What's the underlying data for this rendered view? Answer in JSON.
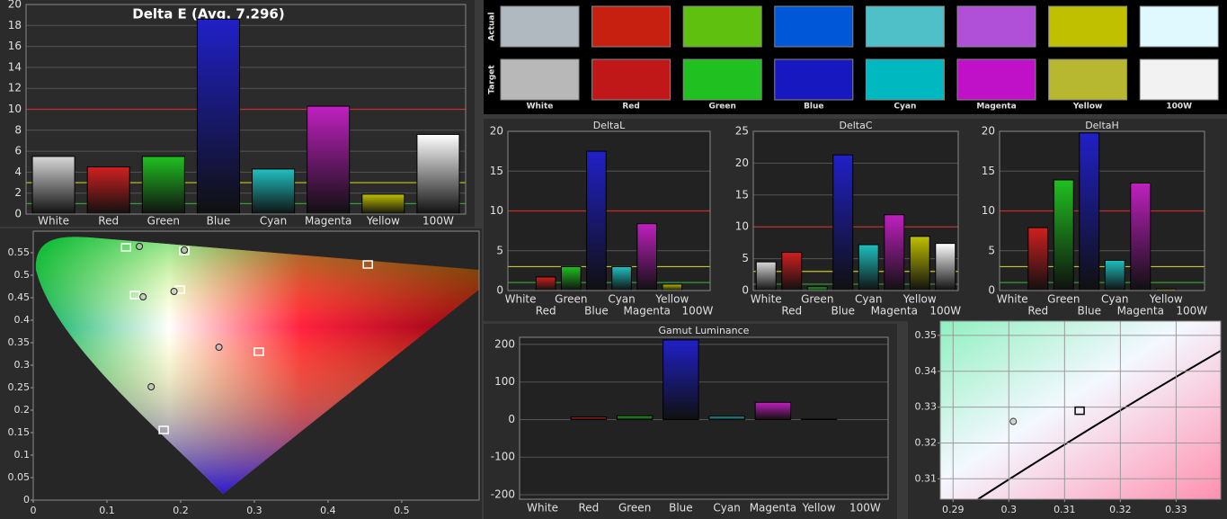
{
  "chart_data": [
    {
      "type": "bar",
      "title": "Delta E (Avg. 7.296)",
      "categories": [
        "White",
        "Red",
        "Green",
        "Blue",
        "Cyan",
        "Magenta",
        "Yellow",
        "100W"
      ],
      "values": [
        5.5,
        4.5,
        5.5,
        18.6,
        4.3,
        10.3,
        1.9,
        7.6
      ],
      "colors": [
        "#d8d8d8",
        "#d02020",
        "#20c020",
        "#2020c8",
        "#20c0c0",
        "#c020c0",
        "#c0c000",
        "#ffffff"
      ],
      "ylim": [
        0,
        20
      ],
      "yticks": [
        0,
        2,
        4,
        6,
        8,
        10,
        12,
        14,
        16,
        18,
        20
      ],
      "grid": true,
      "reference_lines": [
        {
          "value": 10,
          "color": "#c03030"
        },
        {
          "value": 3,
          "color": "#c8c820"
        },
        {
          "value": 1,
          "color": "#30a030"
        }
      ]
    },
    {
      "type": "swatch",
      "categories": [
        "White",
        "Red",
        "Green",
        "Blue",
        "Cyan",
        "Magenta",
        "Yellow",
        "100W"
      ],
      "series": [
        {
          "name": "Actual",
          "colors": [
            "#b0b8c0",
            "#c82010",
            "#60c010",
            "#0058d8",
            "#50c0c8",
            "#b050d8",
            "#c0c000",
            "#e0f8ff"
          ]
        },
        {
          "name": "Target",
          "colors": [
            "#b8b8b8",
            "#c01818",
            "#20c020",
            "#1818c0",
            "#00b8c0",
            "#c010c8",
            "#b8b830",
            "#f2f2f2"
          ]
        }
      ]
    },
    {
      "type": "bar",
      "title": "DeltaL",
      "categories": [
        "White",
        "Red",
        "Green",
        "Blue",
        "Cyan",
        "Magenta",
        "Yellow",
        "100W"
      ],
      "values": [
        0,
        1.7,
        3,
        17.5,
        3,
        8.4,
        0.8,
        0
      ],
      "colors": [
        "#d8d8d8",
        "#d02020",
        "#20c020",
        "#2020c8",
        "#20c0c0",
        "#c020c0",
        "#c0c000",
        "#ffffff"
      ],
      "ylim": [
        0,
        20
      ],
      "yticks": [
        0,
        5,
        10,
        15,
        20
      ],
      "grid": true,
      "reference_lines": [
        {
          "value": 10,
          "color": "#c03030"
        },
        {
          "value": 3,
          "color": "#c8c820"
        },
        {
          "value": 1,
          "color": "#30a030"
        }
      ]
    },
    {
      "type": "bar",
      "title": "DeltaC",
      "categories": [
        "White",
        "Red",
        "Green",
        "Blue",
        "Cyan",
        "Magenta",
        "Yellow",
        "100W"
      ],
      "values": [
        4.5,
        6,
        0.6,
        21.3,
        7.2,
        11.9,
        8.5,
        7.4
      ],
      "colors": [
        "#d8d8d8",
        "#d02020",
        "#20c020",
        "#2020c8",
        "#20c0c0",
        "#c020c0",
        "#c0c000",
        "#ffffff"
      ],
      "ylim": [
        0,
        25
      ],
      "yticks": [
        0,
        5,
        10,
        15,
        20,
        25
      ],
      "grid": true,
      "reference_lines": [
        {
          "value": 10,
          "color": "#c03030"
        },
        {
          "value": 3,
          "color": "#c8c820"
        },
        {
          "value": 1,
          "color": "#30a030"
        }
      ]
    },
    {
      "type": "bar",
      "title": "DeltaH",
      "categories": [
        "White",
        "Red",
        "Green",
        "Blue",
        "Cyan",
        "Magenta",
        "Yellow",
        "100W"
      ],
      "values": [
        0,
        7.9,
        13.9,
        19.8,
        3.8,
        13.5,
        0.2,
        0
      ],
      "colors": [
        "#d8d8d8",
        "#d02020",
        "#20c020",
        "#2020c8",
        "#20c0c0",
        "#c020c0",
        "#c0c000",
        "#ffffff"
      ],
      "ylim": [
        0,
        20
      ],
      "yticks": [
        0,
        5,
        10,
        15,
        20
      ],
      "grid": true,
      "reference_lines": [
        {
          "value": 10,
          "color": "#c03030"
        },
        {
          "value": 3,
          "color": "#c8c820"
        },
        {
          "value": 1,
          "color": "#30a030"
        }
      ]
    },
    {
      "type": "bar",
      "title": "Gamut Luminance",
      "categories": [
        "White",
        "Red",
        "Green",
        "Blue",
        "Cyan",
        "Magenta",
        "Yellow",
        "100W"
      ],
      "values": [
        0,
        7,
        10,
        212,
        9,
        46,
        1,
        0
      ],
      "colors": [
        "#d8d8d8",
        "#d02020",
        "#20c020",
        "#2020c8",
        "#20c0c0",
        "#c020c0",
        "#c0c000",
        "#ffffff"
      ],
      "ylim": [
        -212,
        219
      ],
      "yticks": [
        -200,
        -100,
        0,
        100,
        200
      ],
      "grid": true
    },
    {
      "type": "scatter",
      "xlim": [
        0,
        0.605
      ],
      "ylim": [
        0,
        0.598
      ],
      "xticks": [
        0,
        0.1,
        0.2,
        0.3,
        0.4,
        0.5
      ],
      "yticks": [
        0,
        0.05,
        0.1,
        0.15,
        0.2,
        0.25,
        0.3,
        0.35,
        0.4,
        0.45,
        0.5,
        0.55
      ],
      "grid": false,
      "series": [
        {
          "marker": "square",
          "color": "#ffffff",
          "x": [
            0.126,
            0.205,
            0.199,
            0.138,
            0.454,
            0.306,
            0.177
          ],
          "y": [
            0.562,
            0.554,
            0.468,
            0.456,
            0.524,
            0.33,
            0.156
          ]
        },
        {
          "marker": "circle",
          "color": "#202020",
          "x": [
            0.144,
            0.205,
            0.191,
            0.149,
            0.252,
            0.16
          ],
          "y": [
            0.564,
            0.556,
            0.464,
            0.452,
            0.34,
            0.252
          ]
        }
      ]
    },
    {
      "type": "scatter",
      "xlim": [
        0.2877,
        0.338
      ],
      "ylim": [
        0.3043,
        0.354
      ],
      "xticks": [
        0.29,
        0.3,
        0.31,
        0.32,
        0.33
      ],
      "yticks": [
        0.31,
        0.32,
        0.33,
        0.34,
        0.35
      ],
      "grid": true,
      "series": [
        {
          "marker": "circle",
          "color": "#404040",
          "x": [
            0.3008
          ],
          "y": [
            0.326
          ]
        },
        {
          "marker": "square",
          "color": "#000000",
          "x": [
            0.3127
          ],
          "y": [
            0.329
          ]
        }
      ]
    }
  ]
}
